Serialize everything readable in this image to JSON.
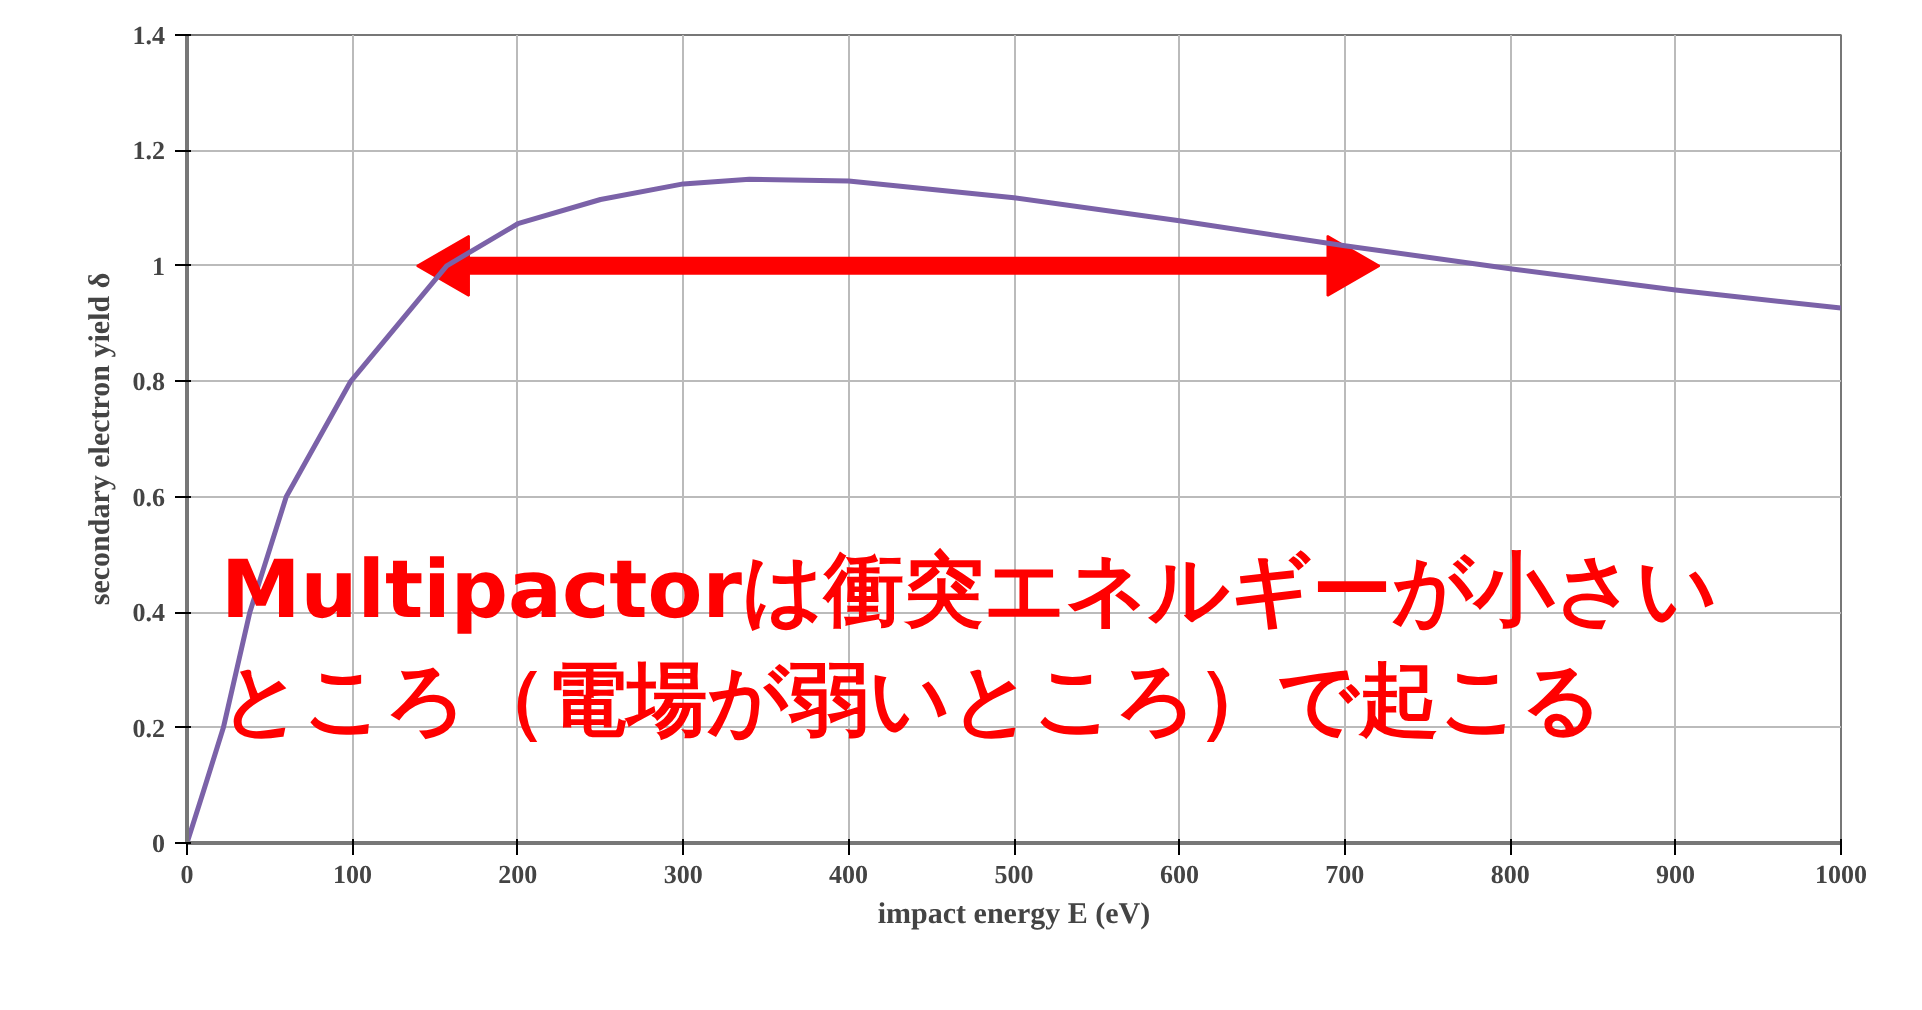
{
  "chart_data": {
    "type": "line",
    "xlabel": "impact energy E (eV)",
    "ylabel": "secondary electron yield δ",
    "x": [
      0,
      10,
      22,
      38,
      60,
      99,
      157,
      200,
      250,
      300,
      340,
      400,
      500,
      600,
      700,
      800,
      900,
      1000
    ],
    "series": [
      {
        "color": "#7b62a8",
        "values": [
          0,
          0.09,
          0.2,
          0.4,
          0.6,
          0.8,
          1.0,
          1.073,
          1.115,
          1.142,
          1.15,
          1.147,
          1.118,
          1.078,
          1.035,
          0.995,
          0.958,
          0.927
        ]
      },
      {
        "type": "line",
        "marker": "triangle",
        "color": "#ff0000",
        "x": [
          160,
          700
        ],
        "values": [
          1,
          1
        ]
      }
    ],
    "xlim": [
      0,
      1000
    ],
    "xticks": [
      0,
      100,
      200,
      300,
      400,
      500,
      600,
      700,
      800,
      900,
      1000
    ],
    "ylim": [
      0,
      1.4
    ],
    "yticks": [
      0,
      0.2,
      0.4,
      0.6,
      0.8,
      1,
      1.2,
      1.4
    ],
    "grid": true,
    "marker": "none",
    "line_style": "solid",
    "annotations": [
      "Multipactorは衝突エネルギーが小さい",
      "ところ（電場が弱いところ）で起こる"
    ]
  }
}
